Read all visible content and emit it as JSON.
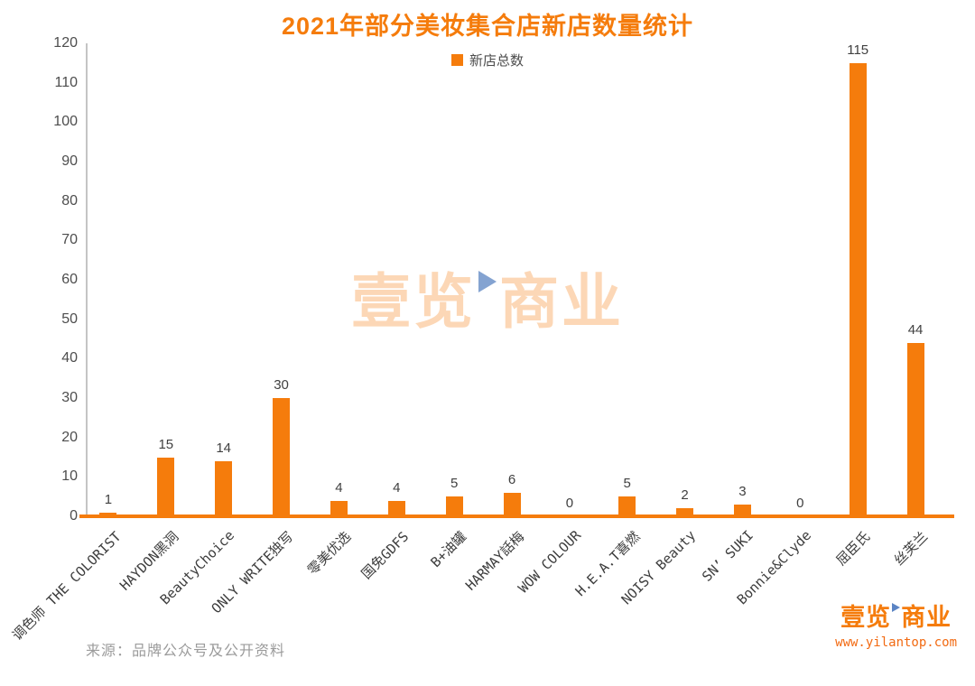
{
  "chart_data": {
    "type": "bar",
    "title": "2021年部分美妆集合店新店数量统计",
    "categories": [
      "调色师 THE COLORIST",
      "HAYDON黑洞",
      "BeautyChoice",
      "ONLY WRITE独写",
      "零美优选",
      "国免GDFS",
      "B+油罐",
      "HARMAY話梅",
      "WOW COLOUR",
      "H.E.A.T喜燃",
      "NOISY Beauty",
      "SN’ SUKI",
      "Bonnie&Clyde",
      "屈臣氏",
      "丝芙兰"
    ],
    "series": [
      {
        "name": "新店总数",
        "values": [
          1,
          15,
          14,
          30,
          4,
          4,
          5,
          6,
          0,
          5,
          2,
          3,
          0,
          115,
          44
        ]
      }
    ],
    "xlabel": "",
    "ylabel": "",
    "ylim": [
      0,
      120
    ],
    "ytick_step": 10,
    "grid": false,
    "legend_position": "top-center",
    "bar_color": "#F57C0C",
    "baseline_color": "#F57C0C",
    "axis_line_color": "#C4C4C4",
    "value_label_color": "#404040",
    "tick_label_color": "#4d4d4d",
    "title_color": "#F57C0C"
  },
  "watermark": {
    "text_left": "壹览",
    "text_right": "商业",
    "triangle_color": "#6E93C9"
  },
  "footer": {
    "source": "来源：品牌公众号及公开资料",
    "logo_left": "壹览",
    "logo_right": "商业",
    "url": "www.yilantop.com",
    "logo_color": "#F57C0C"
  }
}
